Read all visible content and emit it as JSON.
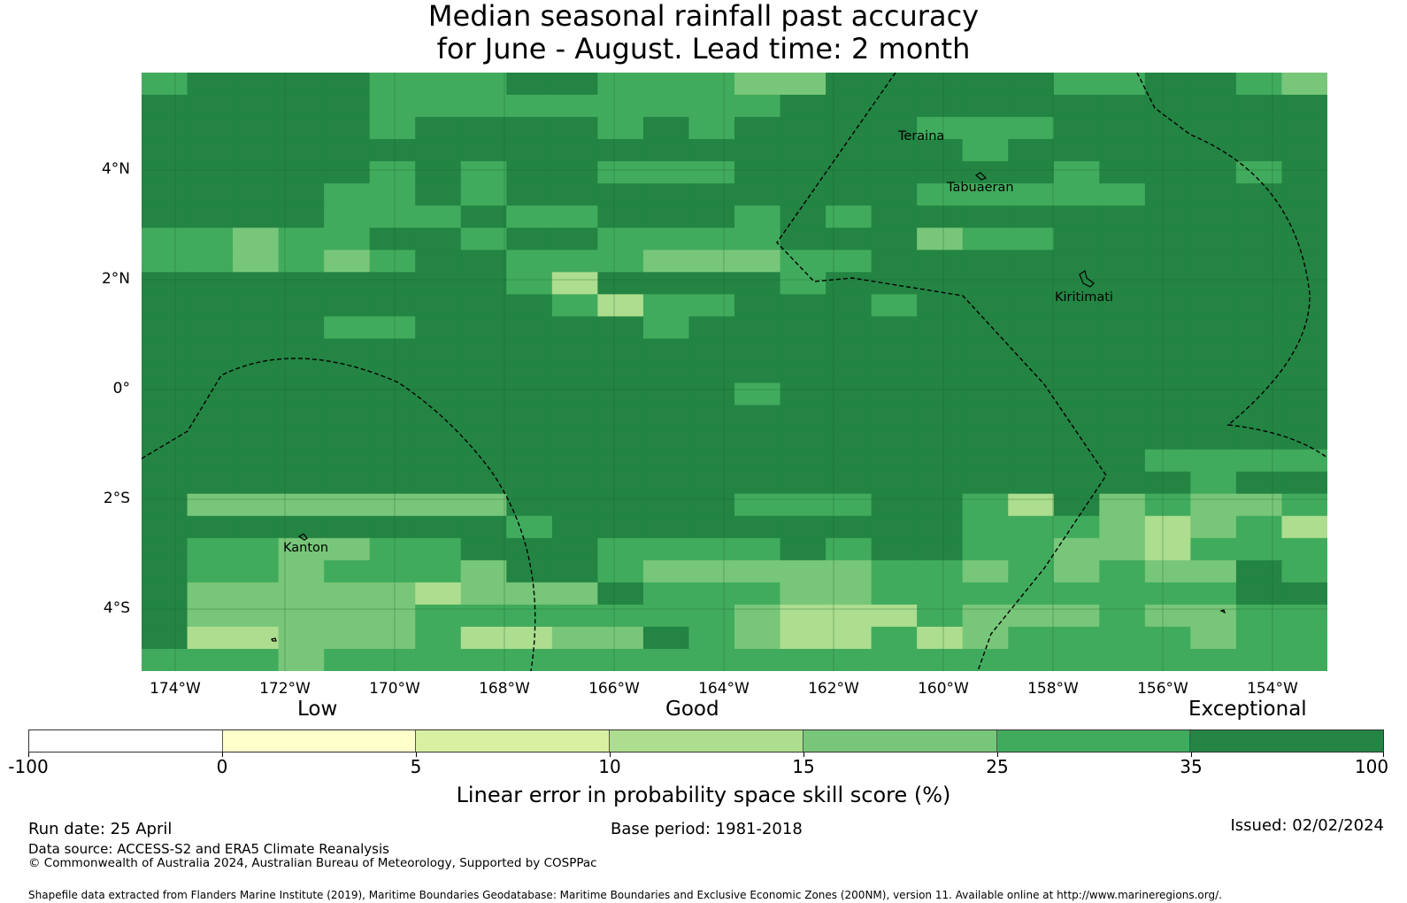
{
  "title": {
    "line1": "Median seasonal rainfall past accuracy",
    "line2": "for June - August. Lead time: 2 month"
  },
  "map": {
    "lat_labels": [
      "4°N",
      "2°N",
      "0°",
      "2°S",
      "4°S"
    ],
    "lon_labels": [
      "174°W",
      "172°W",
      "170°W",
      "168°W",
      "166°W",
      "164°W",
      "162°W",
      "160°W",
      "158°W",
      "156°W",
      "154°W"
    ],
    "places": [
      "Teraina",
      "Tabuaeran",
      "Kiritimati",
      "Kanton"
    ],
    "palette": [
      "#ffffff",
      "#ffffcc",
      "#d9f0a3",
      "#addd8e",
      "#78c679",
      "#41ab5d",
      "#238443"
    ],
    "grid_rows": [
      "56666555665554466666556654",
      "66666555555555666666666666",
      "66666566665656666555666666",
      "66666666666666666656666666",
      "66666565665556666666566656",
      "66665565666666666555556666",
      "66665556556665656666666666",
      "55455665665555666455666666",
      "55454566555444556666666666",
      "66666666536666566666666666",
      "66666666653556665666666666",
      "66665566666566666666666666",
      "66666666666666666666666666",
      "66666666666666666666666666",
      "66666666666665666666666666",
      "66666666666666666666666666",
      "66666666666666666666666666",
      "66666666666666666666665555",
      "66666666666666666666666566",
      "64444444666665556653645445",
      "66666666566666666655543453",
      "65544556665555656655443555",
      "65545554665444445545454465",
      "64444434446555445555555566",
      "64444455555554333544454455",
      "63344453344654335345555455",
      "55545555555555555555555555"
    ]
  },
  "colorbar": {
    "categories": [
      "Low",
      "Good",
      "Exceptional"
    ],
    "ticks": [
      "-100",
      "0",
      "5",
      "10",
      "15",
      "25",
      "35",
      "100"
    ],
    "colors": [
      "#ffffff",
      "#ffffcc",
      "#d9f0a3",
      "#addd8e",
      "#78c679",
      "#41ab5d",
      "#238443"
    ],
    "label": "Linear error in probability space skill score (%)"
  },
  "footer": {
    "run_date": "Run date: 25 April",
    "base_period": "Base period: 1981-2018",
    "issued": "Issued: 02/02/2024",
    "data_source": "Data source: ACCESS-S2 and ERA5 Climate Reanalysis",
    "copyright": "© Commonwealth of Australia 2024, Australian Bureau of Meteorology, Supported by COSPPac",
    "shapefile": "Shapefile data extracted from Flanders Marine Institute (2019), Maritime Boundaries Geodatabase: Maritime Boundaries and Exclusive Economic Zones (200NM), version 11. Available online at http://www.marineregions.org/."
  }
}
